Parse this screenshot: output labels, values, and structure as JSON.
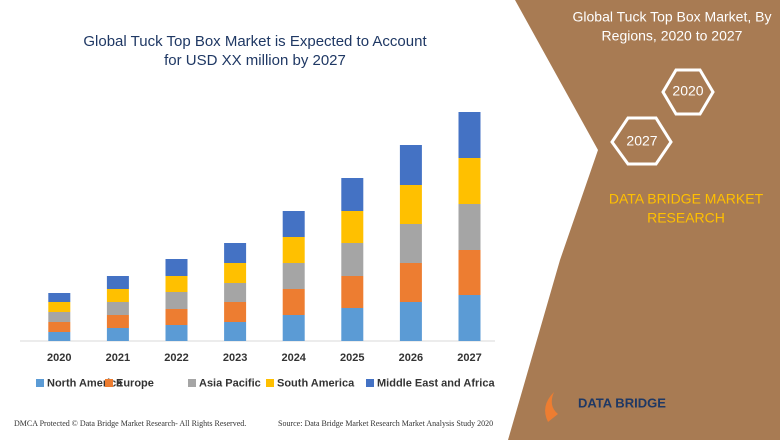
{
  "chart_data": {
    "type": "stacked-bar",
    "title": [
      "Global Tuck Top Box Market is Expected to Account",
      "for USD XX million by 2027"
    ],
    "categories": [
      "2020",
      "2021",
      "2022",
      "2023",
      "2024",
      "2025",
      "2026",
      "2027"
    ],
    "series": [
      {
        "name": "North America",
        "color": "#5b9bd5",
        "values": [
          9,
          13,
          16,
          19,
          26,
          33,
          39,
          46
        ]
      },
      {
        "name": "Europe",
        "color": "#ed7d31",
        "values": [
          10,
          13,
          16,
          20,
          26,
          32,
          39,
          45
        ]
      },
      {
        "name": "Asia Pacific",
        "color": "#a5a5a5",
        "values": [
          10,
          13,
          17,
          19,
          26,
          33,
          39,
          46
        ]
      },
      {
        "name": "South America",
        "color": "#ffc000",
        "values": [
          10,
          13,
          16,
          20,
          26,
          32,
          39,
          46
        ]
      },
      {
        "name": "Middle East and Africa",
        "color": "#4472c4",
        "values": [
          9,
          13,
          17,
          20,
          26,
          33,
          40,
          46
        ]
      }
    ]
  },
  "panel": {
    "title": [
      "Global Tuck Top Box Market, By",
      "Regions, 2020 to 2027"
    ],
    "hex_a": "2027",
    "hex_b": "2020",
    "brand": [
      "DATA BRIDGE MARKET",
      "RESEARCH"
    ],
    "logo": "DATA BRIDGE"
  },
  "footer": {
    "left": "DMCA Protected © Data Bridge Market Research- All Rights Reserved.",
    "right": "Source: Data Bridge Market Research Market Analysis Study 2020"
  }
}
